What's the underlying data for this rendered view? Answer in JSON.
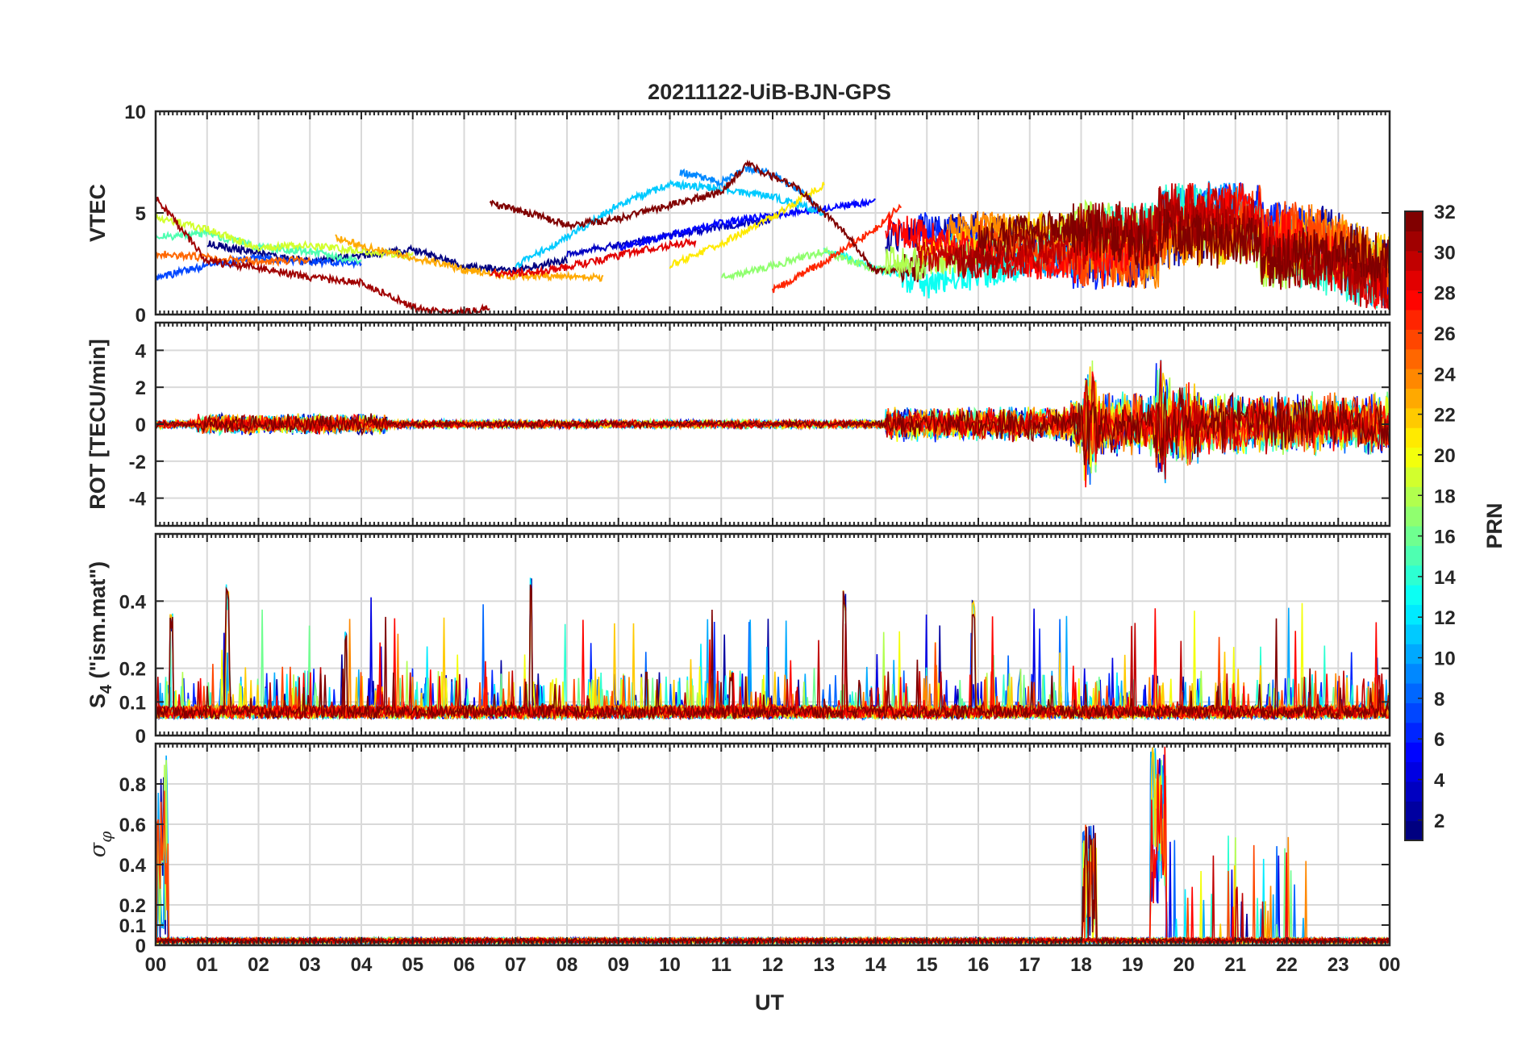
{
  "chart_data": {
    "type": "line",
    "title": "20211122-UiB-BJN-GPS",
    "xlabel": "UT",
    "x_ticks": [
      "00",
      "01",
      "02",
      "03",
      "04",
      "05",
      "06",
      "07",
      "08",
      "09",
      "10",
      "11",
      "12",
      "13",
      "14",
      "15",
      "16",
      "17",
      "18",
      "19",
      "20",
      "21",
      "22",
      "23",
      "00"
    ],
    "xlim": [
      0,
      24
    ],
    "grid": true,
    "colormap": "jet",
    "colorbar": {
      "label": "PRN",
      "range": [
        1,
        32
      ],
      "ticks": [
        "2",
        "4",
        "6",
        "8",
        "10",
        "12",
        "14",
        "16",
        "18",
        "20",
        "22",
        "24",
        "26",
        "28",
        "30",
        "32"
      ],
      "placement": "right"
    },
    "panels": [
      {
        "id": "vtec",
        "ylabel": "VTEC",
        "ylim": [
          0,
          10
        ],
        "yticks": [
          "0",
          "5",
          "10"
        ],
        "series": [
          {
            "prn": 1,
            "x": [
              1.0,
              2.0,
              3.0,
              4.0,
              5.0,
              6.0,
              7.0,
              8.0
            ],
            "y": [
              3.5,
              3.0,
              2.6,
              2.9,
              3.2,
              2.4,
              2.2,
              2.7
            ]
          },
          {
            "prn": 3,
            "x": [
              8.0,
              9.0,
              10.0,
              11.0,
              12.0
            ],
            "y": [
              3.0,
              3.4,
              3.9,
              4.3,
              4.7
            ]
          },
          {
            "prn": 5,
            "x": [
              9.0,
              10.0,
              11.0,
              12.0,
              13.0,
              14.0
            ],
            "y": [
              3.3,
              3.9,
              4.5,
              4.9,
              5.2,
              5.6
            ]
          },
          {
            "prn": 7,
            "x": [
              0.0,
              1.0,
              2.0,
              3.0,
              4.0
            ],
            "y": [
              1.8,
              2.4,
              2.8,
              2.6,
              2.5
            ]
          },
          {
            "prn": 9,
            "x": [
              10.2,
              11.0,
              11.5,
              12.0,
              12.8
            ],
            "y": [
              7.0,
              6.5,
              7.2,
              6.9,
              5.6
            ]
          },
          {
            "prn": 11,
            "x": [
              7.0,
              8.0,
              9.0,
              10.0,
              11.0,
              12.0,
              13.0
            ],
            "y": [
              2.4,
              3.8,
              5.4,
              6.4,
              6.2,
              5.8,
              5.0
            ]
          },
          {
            "prn": 13,
            "x": [
              13.0,
              14.0,
              15.0,
              16.0,
              17.0
            ],
            "y": [
              3.2,
              2.3,
              1.5,
              1.9,
              2.6
            ]
          },
          {
            "prn": 15,
            "x": [
              0.0,
              1.0,
              2.0,
              3.0,
              4.0
            ],
            "y": [
              3.8,
              4.0,
              3.3,
              3.1,
              2.6
            ]
          },
          {
            "prn": 17,
            "x": [
              11.0,
              12.0,
              13.0,
              14.0,
              15.0
            ],
            "y": [
              1.8,
              2.4,
              3.1,
              2.2,
              2.5
            ]
          },
          {
            "prn": 19,
            "x": [
              0.0,
              1.0,
              2.0,
              3.0,
              4.0,
              5.0
            ],
            "y": [
              4.8,
              4.2,
              3.3,
              3.4,
              3.1,
              2.9
            ]
          },
          {
            "prn": 21,
            "x": [
              10.0,
              11.0,
              12.0,
              13.0
            ],
            "y": [
              2.4,
              3.5,
              4.8,
              6.4
            ]
          },
          {
            "prn": 23,
            "x": [
              3.5,
              4.0,
              5.0,
              6.0,
              7.0,
              8.0,
              8.7
            ],
            "y": [
              3.8,
              3.4,
              2.8,
              2.2,
              1.9,
              1.9,
              1.8
            ]
          },
          {
            "prn": 25,
            "x": [
              0.0,
              1.0,
              2.0,
              3.0
            ],
            "y": [
              3.0,
              2.8,
              2.6,
              2.7
            ]
          },
          {
            "prn": 27,
            "x": [
              12.0,
              13.0,
              14.0,
              14.5
            ],
            "y": [
              1.2,
              2.6,
              4.2,
              5.4
            ]
          },
          {
            "prn": 29,
            "x": [
              6.5,
              7.5,
              8.5,
              9.5,
              10.5
            ],
            "y": [
              2.0,
              2.1,
              2.6,
              3.2,
              3.6
            ]
          },
          {
            "prn": 31,
            "x": [
              0.0,
              1.0,
              2.0,
              3.0,
              4.0,
              4.5,
              5.0,
              5.5,
              6.0,
              6.5
            ],
            "y": [
              5.8,
              2.6,
              2.3,
              1.8,
              1.6,
              1.0,
              0.4,
              0.1,
              0.1,
              0.3
            ]
          },
          {
            "prn": 32,
            "x": [
              6.5,
              7.5,
              8.0,
              9.0,
              10.0,
              11.0,
              11.5,
              12.5,
              13.5,
              14.0,
              15.0
            ],
            "y": [
              5.5,
              4.8,
              4.4,
              4.7,
              5.4,
              6.0,
              7.4,
              6.2,
              3.8,
              2.1,
              2.4
            ]
          }
        ]
      },
      {
        "id": "rot",
        "ylabel": "ROT [TECU/min]",
        "ylim": [
          -5.5,
          5.5
        ],
        "yticks": [
          "4",
          "2",
          "0",
          "-2",
          "-4"
        ]
      },
      {
        "id": "s4",
        "ylabel": "S4 (\"ism.mat\")",
        "ylabel_main": "S",
        "ylabel_sub": "4",
        "ylabel_rest": " (\"ism.mat\")",
        "ylim": [
          0,
          0.6
        ],
        "yticks": [
          "0",
          "0.1",
          "0.2",
          "0.4"
        ]
      },
      {
        "id": "sigma",
        "ylabel": "σφ",
        "ylabel_main": "σ",
        "ylabel_sub": "φ",
        "ylim": [
          0,
          1.0
        ],
        "yticks": [
          "0",
          "0.1",
          "0.2",
          "0.4",
          "0.6",
          "0.8"
        ]
      }
    ]
  }
}
